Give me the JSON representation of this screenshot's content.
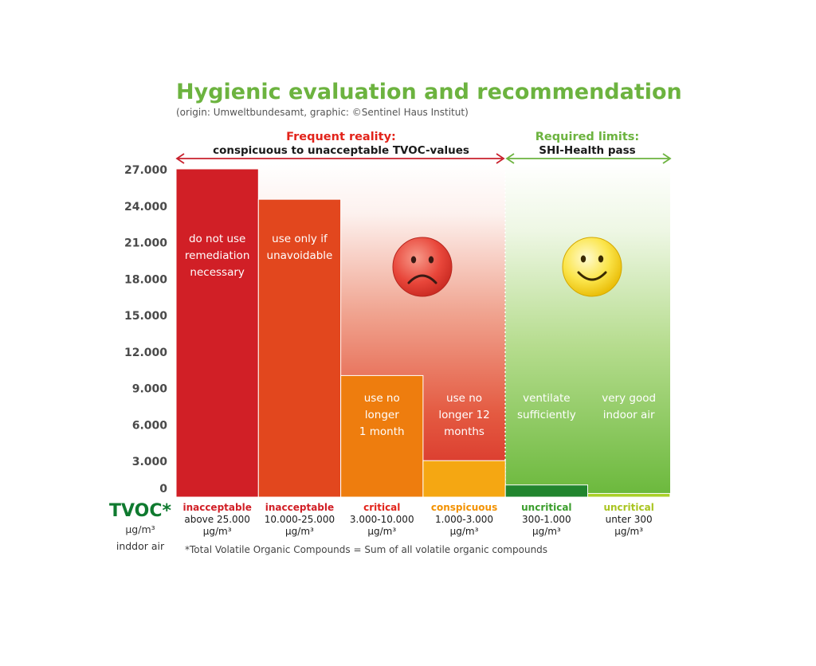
{
  "title": "Hygienic evaluation and recommendation",
  "subtitle": "(origin: Umweltbundesamt, graphic: ©Sentinel Haus Institut)",
  "colors": {
    "title_green": "#6cb33f",
    "red_text": "#e2231a",
    "dark_green": "#0f7a2f",
    "range_red": "#c8202c",
    "range_green": "#6cb33f"
  },
  "ranges": {
    "reality": {
      "label": "Frequent reality:",
      "sublabel": "conspicuous to unacceptable TVOC-values",
      "arrow_color": "#c8202c"
    },
    "limits": {
      "label": "Required limits:",
      "sublabel": "SHI-Health pass",
      "arrow_color": "#6cb33f"
    }
  },
  "faces": {
    "sad": "sad-face-icon",
    "happy": "happy-face-icon"
  },
  "axis": {
    "label": "TVOC*",
    "unit": "µg/m³",
    "sublabel": "inddor air"
  },
  "footnote": "*Total Volatile Organic Compounds = Sum of all volatile organic compounds",
  "chart_data": {
    "type": "bar",
    "title": "Hygienic evaluation and recommendation",
    "ylabel": "TVOC*",
    "ylim": [
      0,
      27000
    ],
    "yticks": [
      0,
      3000,
      6000,
      9000,
      12000,
      15000,
      18000,
      21000,
      24000,
      27000
    ],
    "ytick_labels": [
      "0",
      "3.000",
      "6.000",
      "9.000",
      "12.000",
      "15.000",
      "18.000",
      "21.000",
      "24.000",
      "27.000"
    ],
    "grid": false,
    "categories": [
      "above 25.000 µg/m³",
      "10.000-25.000 µg/m³",
      "3.000-10.000 µg/m³",
      "1.000-3.000 µg/m³",
      "300-1.000 µg/m³",
      "unter 300 µg/m³"
    ],
    "bars": [
      {
        "rating": "inacceptable",
        "range": "above 25.000",
        "unit": "µg/m³",
        "recommendation": [
          "do not use",
          "remediation",
          "necessary"
        ],
        "value": 27000,
        "color": "#d11f26",
        "rating_color": "#d11f26"
      },
      {
        "rating": "inacceptable",
        "range": "10.000-25.000",
        "unit": "µg/m³",
        "recommendation": [
          "use only if",
          "unavoidable"
        ],
        "value": 24500,
        "color": "#e2471e",
        "rating_color": "#d11f26"
      },
      {
        "rating": "critical",
        "range": "3.000-10.000",
        "unit": "µg/m³",
        "recommendation": [
          "use no",
          "longer",
          "1 month"
        ],
        "value": 10000,
        "color": "#ee7d0e",
        "rating_color": "#e2231a"
      },
      {
        "rating": "conspicuous",
        "range": "1.000-3.000",
        "unit": "µg/m³",
        "recommendation": [
          "use no",
          "longer 12",
          "months"
        ],
        "value": 3000,
        "color": "#f5a712",
        "rating_color": "#f39200"
      },
      {
        "rating": "uncritical",
        "range": "300-1.000",
        "unit": "µg/m³",
        "recommendation": [
          "ventilate",
          "sufficiently"
        ],
        "value": 1000,
        "color": "#21852e",
        "rating_color": "#3a9d2b"
      },
      {
        "rating": "uncritical",
        "range": "unter 300",
        "unit": "µg/m³",
        "recommendation": [
          "very good",
          "indoor air"
        ],
        "value": 300,
        "color": "#a9cf28",
        "rating_color": "#a9c41f"
      }
    ]
  }
}
